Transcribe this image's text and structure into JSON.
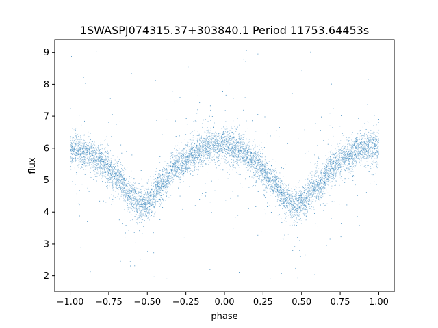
{
  "chart_data": {
    "type": "scatter",
    "title": "1SWASPJ074315.37+303840.1 Period 11753.64453s",
    "xlabel": "phase",
    "ylabel": "flux",
    "xlim": [
      -1.1,
      1.1
    ],
    "ylim": [
      1.5,
      9.4
    ],
    "xticks": [
      -1.0,
      -0.75,
      -0.5,
      -0.25,
      0.0,
      0.25,
      0.5,
      0.75,
      1.0
    ],
    "xtick_labels": [
      "−1.00",
      "−0.75",
      "−0.50",
      "−0.25",
      "0.00",
      "0.25",
      "0.50",
      "0.75",
      "1.00"
    ],
    "yticks": [
      2,
      3,
      4,
      5,
      6,
      7,
      8,
      9
    ],
    "ytick_labels": [
      "2",
      "3",
      "4",
      "5",
      "6",
      "7",
      "8",
      "9"
    ],
    "grid": false,
    "marker_color": "#1f77b4",
    "series": [
      {
        "x": [
          -1.0,
          -0.9,
          -0.8,
          -0.7,
          -0.6,
          -0.55,
          -0.5,
          -0.4,
          -0.3,
          -0.2,
          -0.1,
          0.0,
          0.1,
          0.2,
          0.3,
          0.4,
          0.45,
          0.5,
          0.6,
          0.7,
          0.8,
          0.9,
          1.0
        ],
        "y": [
          6.0,
          5.9,
          5.6,
          5.1,
          4.5,
          4.2,
          4.3,
          4.9,
          5.5,
          5.85,
          6.05,
          6.1,
          5.95,
          5.55,
          5.0,
          4.4,
          4.2,
          4.3,
          4.8,
          5.4,
          5.8,
          6.0,
          6.0
        ],
        "scatter_sd": 0.25,
        "outlier_range": [
          1.9,
          9.1
        ]
      }
    ]
  }
}
